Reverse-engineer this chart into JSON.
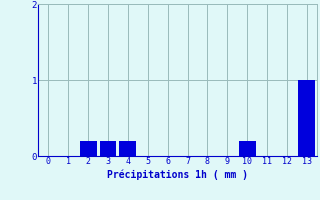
{
  "categories": [
    0,
    1,
    2,
    3,
    4,
    5,
    6,
    7,
    8,
    9,
    10,
    11,
    12,
    13
  ],
  "values": [
    0,
    0,
    0.2,
    0.2,
    0.2,
    0,
    0,
    0,
    0,
    0,
    0.2,
    0,
    0,
    1.0
  ],
  "bar_color": "#0000dd",
  "background_color": "#e0f8f8",
  "grid_color": "#99bbbb",
  "text_color": "#0000cc",
  "xlabel": "Précipitations 1h ( mm )",
  "ylim": [
    0,
    2.0
  ],
  "yticks": [
    0,
    1,
    2
  ],
  "xlim": [
    -0.5,
    13.5
  ],
  "bar_width": 0.85,
  "tick_fontsize": 6.0,
  "xlabel_fontsize": 7.0
}
